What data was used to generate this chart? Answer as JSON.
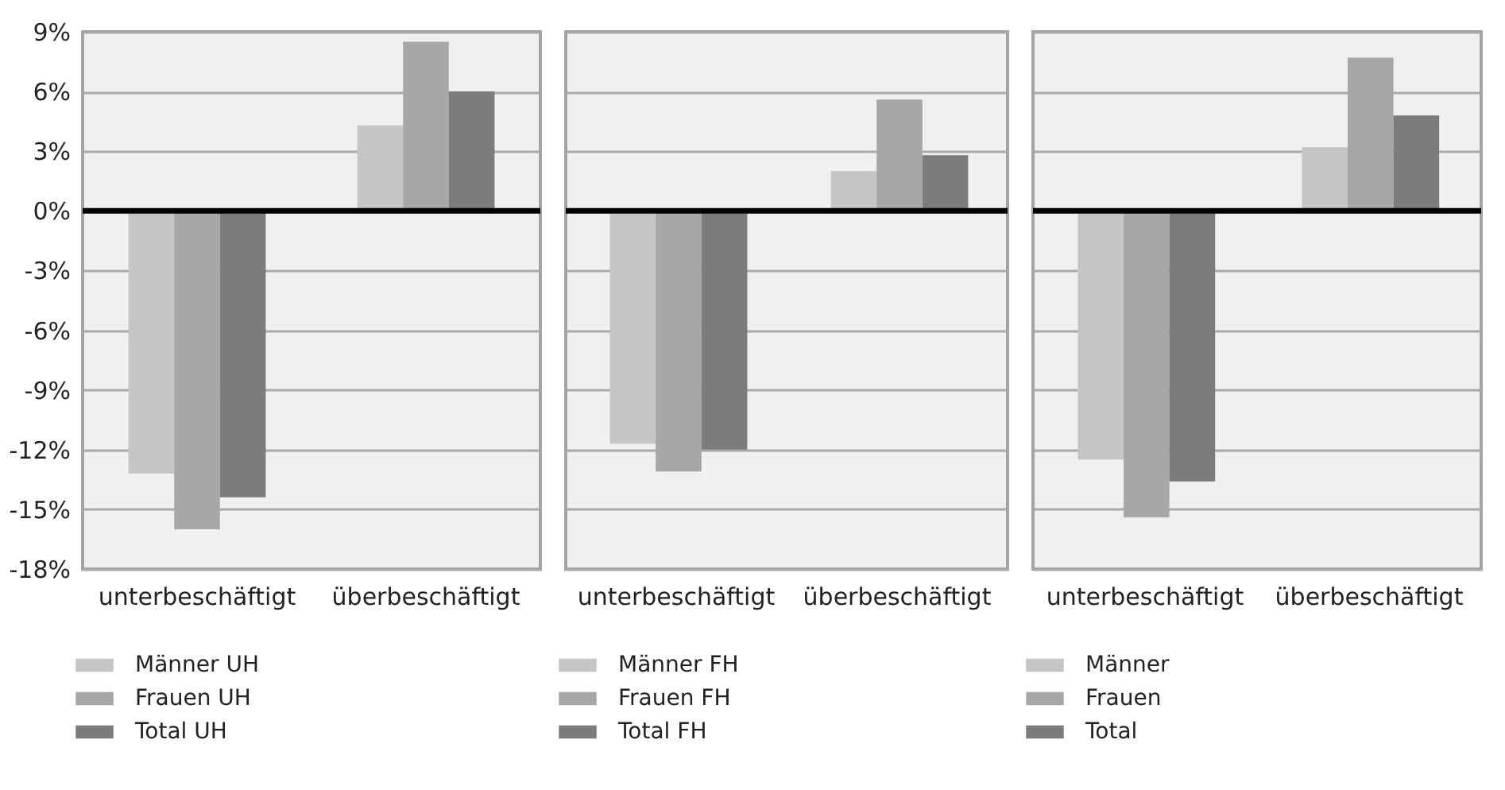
{
  "chart_data": [
    {
      "type": "bar",
      "categories": [
        "unterbeschäftigt",
        "überbeschäftigt"
      ],
      "series": [
        {
          "name": "Männer UH",
          "color": "#c4c5c7",
          "values": [
            -13.2,
            4.3
          ]
        },
        {
          "name": "Frauen UH",
          "color": "#a6a7a9",
          "values": [
            -16.0,
            8.5
          ]
        },
        {
          "name": "Total UH",
          "color": "#7b7c7e",
          "values": [
            -14.4,
            6.0
          ]
        }
      ],
      "ylim": [
        -18,
        9
      ],
      "yticks": [
        {
          "value": -18,
          "label": "-18%"
        },
        {
          "value": -15,
          "label": "-15%"
        },
        {
          "value": -12,
          "label": "-12%"
        },
        {
          "value": -9,
          "label": "-9%"
        },
        {
          "value": -6,
          "label": "-6%"
        },
        {
          "value": -3,
          "label": "-3%"
        },
        {
          "value": 0,
          "label": "0%"
        },
        {
          "value": 3,
          "label": "3%"
        },
        {
          "value": 6,
          "label": "6%"
        },
        {
          "value": 9,
          "label": "9%"
        }
      ],
      "ref_lines": [
        {
          "axis": "y",
          "value": 0,
          "color": "#000000"
        }
      ],
      "grid": "y",
      "legend": "bottom"
    },
    {
      "type": "bar",
      "categories": [
        "unterbeschäftigt",
        "überbeschäftigt"
      ],
      "series": [
        {
          "name": "Männer FH",
          "color": "#c4c5c7",
          "values": [
            -11.7,
            2.0
          ]
        },
        {
          "name": "Frauen FH",
          "color": "#a6a7a9",
          "values": [
            -13.1,
            5.6
          ]
        },
        {
          "name": "Total FH",
          "color": "#7b7c7e",
          "values": [
            -12.0,
            2.8
          ]
        }
      ],
      "ylim": [
        -18,
        9
      ],
      "yticks": [
        -18,
        -15,
        -12,
        -9,
        -6,
        -3,
        0,
        3,
        6,
        9
      ],
      "ref_lines": [
        {
          "axis": "y",
          "value": 0,
          "color": "#000000"
        }
      ],
      "grid": "y",
      "legend": "bottom",
      "tick_labels": "x"
    },
    {
      "type": "bar",
      "categories": [
        "unterbeschäftigt",
        "überbeschäftigt"
      ],
      "series": [
        {
          "name": "Männer",
          "color": "#c4c5c7",
          "values": [
            -12.5,
            3.2
          ]
        },
        {
          "name": "Frauen",
          "color": "#a6a7a9",
          "values": [
            -15.4,
            7.7
          ]
        },
        {
          "name": "Total",
          "color": "#7b7c7e",
          "values": [
            -13.6,
            4.8
          ]
        }
      ],
      "ylim": [
        -18,
        9
      ],
      "yticks": [
        -18,
        -15,
        -12,
        -9,
        -6,
        -3,
        0,
        3,
        6,
        9
      ],
      "ref_lines": [
        {
          "axis": "y",
          "value": 0,
          "color": "#000000"
        }
      ],
      "grid": "y",
      "legend": "bottom",
      "tick_labels": "x"
    }
  ]
}
